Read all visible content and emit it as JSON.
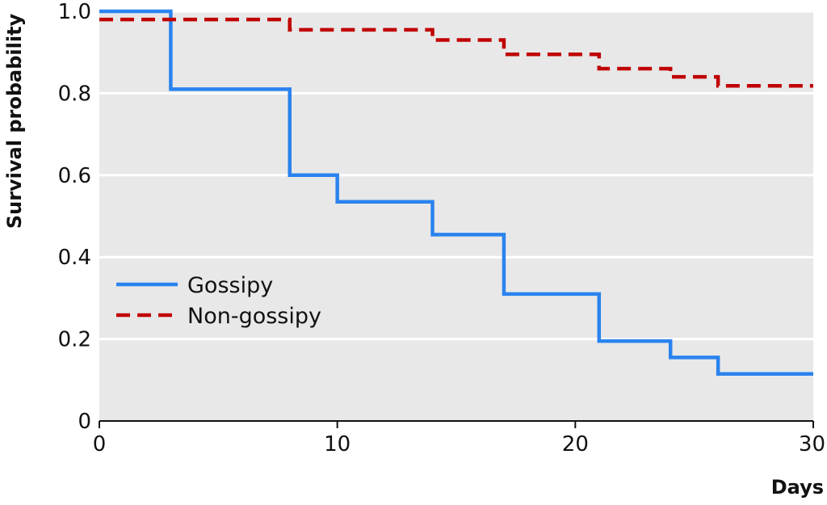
{
  "chart_data": {
    "type": "line",
    "subtype": "step",
    "title": "",
    "xlabel": "Days",
    "ylabel": "Survival probability",
    "xlim": [
      0,
      30
    ],
    "ylim": [
      0,
      1.0
    ],
    "x_ticks": [
      0,
      10,
      20,
      30
    ],
    "x_tick_labels": [
      "0",
      "10",
      "20",
      "30"
    ],
    "y_ticks": [
      0,
      0.2,
      0.4,
      0.6,
      0.8,
      1.0
    ],
    "y_tick_labels": [
      "0",
      "0.2",
      "0.4",
      "0.6",
      "0.8",
      "1.0"
    ],
    "grid": "horizontal",
    "background": "#e8e8e8",
    "legend_position": "center-left",
    "series": [
      {
        "name": "Gossipy",
        "color": "#2a83ee",
        "style": "solid",
        "x": [
          0,
          3,
          8,
          10,
          14,
          17,
          21,
          24,
          26,
          30
        ],
        "y": [
          1.0,
          0.81,
          0.6,
          0.535,
          0.455,
          0.31,
          0.195,
          0.155,
          0.115,
          0.115
        ]
      },
      {
        "name": "Non-gossipy",
        "color": "#c00000",
        "style": "dashed",
        "x": [
          0,
          8,
          14,
          17,
          21,
          24,
          26,
          30
        ],
        "y": [
          0.98,
          0.955,
          0.93,
          0.895,
          0.86,
          0.84,
          0.818,
          0.818
        ]
      }
    ]
  }
}
